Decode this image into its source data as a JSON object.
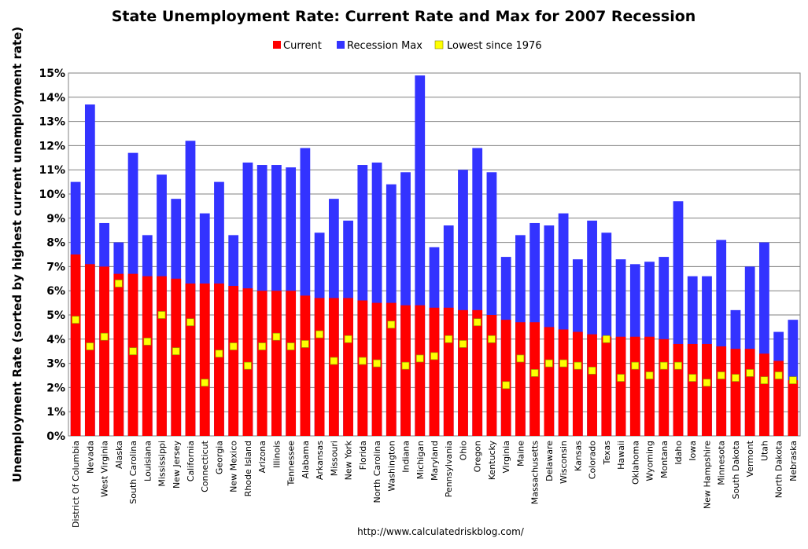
{
  "chart_data": {
    "type": "bar",
    "title": "State Unemployment Rate: Current Rate and Max for 2007 Recession",
    "ylabel": "Unemployment Rate (sorted by highest current unemployment rate)",
    "xlabel": "",
    "source": "http://www.calculatedriskblog.com/",
    "ylim": [
      0,
      15
    ],
    "yticks": [
      "0%",
      "1%",
      "2%",
      "3%",
      "4%",
      "5%",
      "6%",
      "7%",
      "8%",
      "9%",
      "10%",
      "11%",
      "12%",
      "13%",
      "14%",
      "15%"
    ],
    "legend": {
      "position": "top-center",
      "entries": [
        {
          "label": "Current",
          "color": "#ff0000"
        },
        {
          "label": "Recession Max",
          "color": "#3333ff"
        },
        {
          "label": "Lowest since 1976",
          "color": "#ffff00"
        }
      ]
    },
    "categories": [
      "District Of Columbia",
      "Nevada",
      "West Virginia",
      "Alaska",
      "South Carolina",
      "Louisiana",
      "Mississippi",
      "New Jersey",
      "California",
      "Connecticut",
      "Georgia",
      "New Mexico",
      "Rhode Island",
      "Arizona",
      "Illinois",
      "Tennessee",
      "Alabama",
      "Arkansas",
      "Missouri",
      "New York",
      "Florida",
      "North Carolina",
      "Washington",
      "Indiana",
      "Michigan",
      "Maryland",
      "Pennsylvania",
      "Ohio",
      "Oregon",
      "Kentucky",
      "Virginia",
      "Maine",
      "Massachusetts",
      "Delaware",
      "Wisconsin",
      "Kansas",
      "Colorado",
      "Texas",
      "Hawaii",
      "Oklahoma",
      "Wyoming",
      "Montana",
      "Idaho",
      "Iowa",
      "New Hampshire",
      "Minnesota",
      "South Dakota",
      "Vermont",
      "Utah",
      "North Dakota",
      "Nebraska"
    ],
    "series": [
      {
        "name": "Recession Max",
        "color": "#3333ff",
        "values": [
          10.5,
          13.7,
          8.8,
          8.0,
          11.7,
          8.3,
          10.8,
          9.8,
          12.2,
          9.2,
          10.5,
          8.3,
          11.3,
          11.2,
          11.2,
          11.1,
          11.9,
          8.4,
          9.8,
          8.9,
          11.2,
          11.3,
          10.4,
          10.9,
          14.9,
          7.8,
          8.7,
          11.0,
          11.9,
          10.9,
          7.4,
          8.3,
          8.8,
          8.7,
          9.2,
          7.3,
          8.9,
          8.4,
          7.3,
          7.1,
          7.2,
          7.4,
          9.7,
          6.6,
          6.6,
          8.1,
          5.2,
          7.0,
          8.0,
          4.3,
          4.8
        ]
      },
      {
        "name": "Current",
        "color": "#ff0000",
        "values": [
          7.5,
          7.1,
          7.0,
          6.7,
          6.7,
          6.6,
          6.6,
          6.5,
          6.3,
          6.3,
          6.3,
          6.2,
          6.1,
          6.0,
          6.0,
          6.0,
          5.8,
          5.7,
          5.7,
          5.7,
          5.6,
          5.5,
          5.5,
          5.4,
          5.4,
          5.3,
          5.3,
          5.2,
          5.2,
          5.0,
          4.8,
          4.7,
          4.7,
          4.5,
          4.4,
          4.3,
          4.2,
          4.1,
          4.1,
          4.1,
          4.1,
          4.0,
          3.8,
          3.8,
          3.8,
          3.7,
          3.6,
          3.6,
          3.4,
          3.1,
          2.3
        ]
      },
      {
        "name": "Lowest since 1976",
        "color": "#ffff00",
        "values": [
          4.8,
          3.7,
          4.1,
          6.3,
          3.5,
          3.9,
          5.0,
          3.5,
          4.7,
          2.2,
          3.4,
          3.7,
          2.9,
          3.7,
          4.1,
          3.7,
          3.8,
          4.2,
          3.1,
          4.0,
          3.1,
          3.0,
          4.6,
          2.9,
          3.2,
          3.3,
          4.0,
          3.8,
          4.7,
          4.0,
          2.1,
          3.2,
          2.6,
          3.0,
          3.0,
          2.9,
          2.7,
          4.0,
          2.4,
          2.9,
          2.5,
          2.9,
          2.9,
          2.4,
          2.2,
          2.5,
          2.4,
          2.6,
          2.3,
          2.5,
          2.3
        ]
      }
    ]
  }
}
